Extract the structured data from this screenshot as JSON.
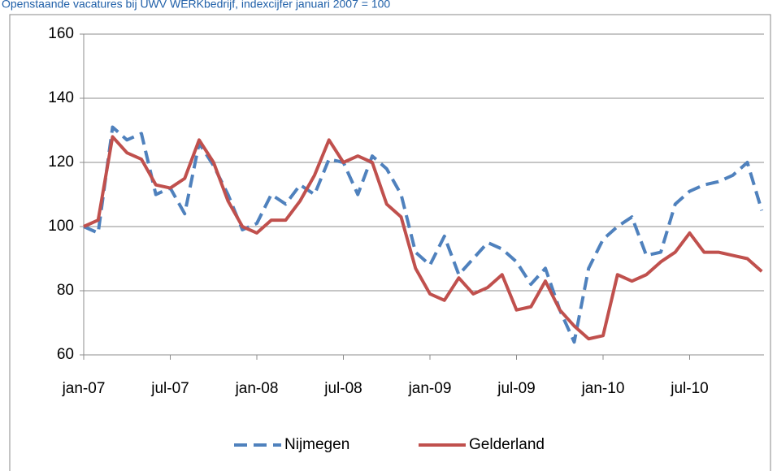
{
  "chart_data": {
    "type": "line",
    "title": "Openstaande vacatures bij UWV WERKbedrijf, indexcijfer januari 2007 = 100",
    "categories": [
      "jan-07",
      null,
      null,
      null,
      null,
      null,
      "jul-07",
      null,
      null,
      null,
      null,
      null,
      "jan-08",
      null,
      null,
      null,
      null,
      null,
      "jul-08",
      null,
      null,
      null,
      null,
      null,
      "jan-09",
      null,
      null,
      null,
      null,
      null,
      "jul-09",
      null,
      null,
      null,
      null,
      null,
      "jan-10",
      null,
      null,
      null,
      null,
      null,
      "jul-10",
      null,
      null,
      null,
      null,
      null
    ],
    "series": [
      {
        "name": "Nijmegen",
        "color": "#4f81bd",
        "dashed": true,
        "values": [
          100,
          98,
          131,
          127,
          129,
          110,
          112,
          104,
          126,
          119,
          110,
          99,
          101,
          110,
          107,
          113,
          110,
          121,
          120,
          110,
          122,
          118,
          110,
          92,
          88,
          97,
          85,
          90,
          95,
          93,
          89,
          82,
          87,
          74,
          64,
          87,
          96,
          100,
          103,
          91,
          92,
          107,
          111,
          113,
          114,
          116,
          120,
          105
        ]
      },
      {
        "name": "Gelderland",
        "color": "#c0504d",
        "dashed": false,
        "values": [
          100,
          102,
          128,
          123,
          121,
          113,
          112,
          115,
          127,
          120,
          108,
          100,
          98,
          102,
          102,
          108,
          116,
          127,
          120,
          122,
          120,
          107,
          103,
          87,
          79,
          77,
          84,
          79,
          81,
          85,
          74,
          75,
          83,
          74,
          69,
          65,
          66,
          85,
          83,
          85,
          89,
          92,
          98,
          92,
          92,
          91,
          90,
          86
        ]
      }
    ],
    "ylim": [
      60,
      160
    ],
    "yticks": [
      60,
      80,
      100,
      120,
      140,
      160
    ],
    "grid": true,
    "legend": "bottom"
  }
}
